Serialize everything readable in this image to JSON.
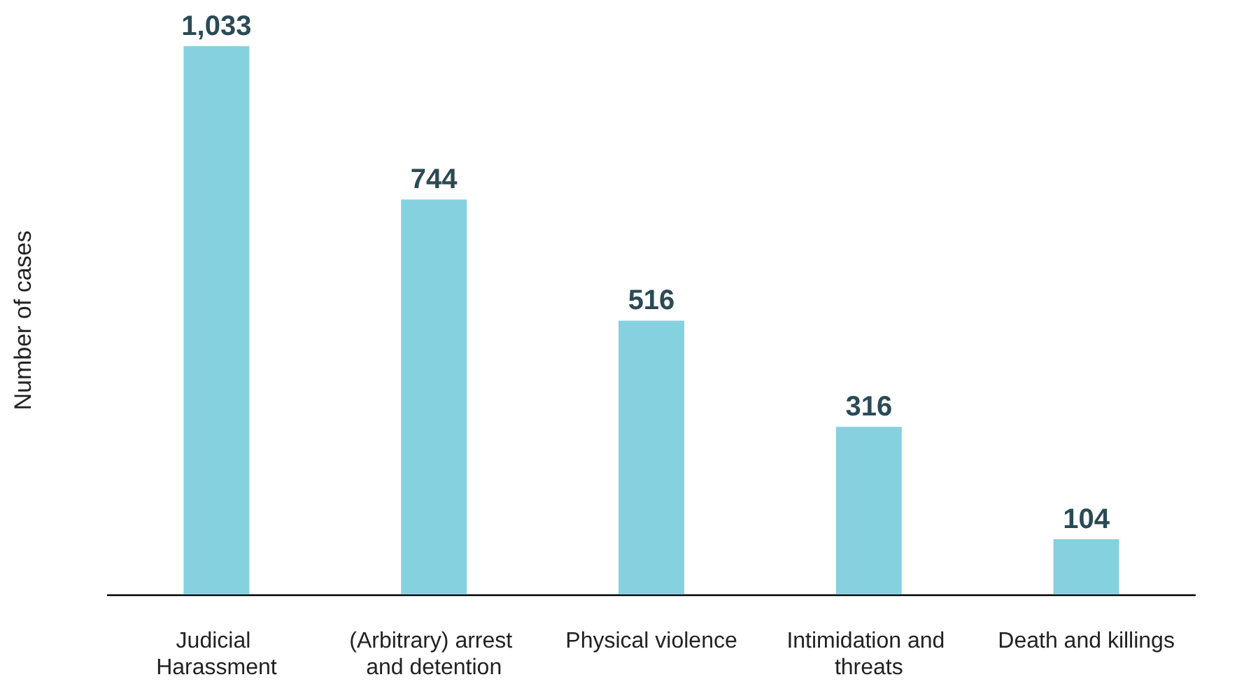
{
  "chart_data": {
    "type": "bar",
    "ylabel": "Number of cases",
    "categories": [
      "Judicial Harassment",
      "(Arbitrary) arrest and detention",
      "Physical violence",
      "Intimidation and threats",
      "Death and killings"
    ],
    "values": [
      1033,
      744,
      516,
      316,
      104
    ],
    "value_labels": [
      "1,033",
      "744",
      "516",
      "316",
      "104"
    ],
    "color": "#86d1e0",
    "grid": false
  }
}
